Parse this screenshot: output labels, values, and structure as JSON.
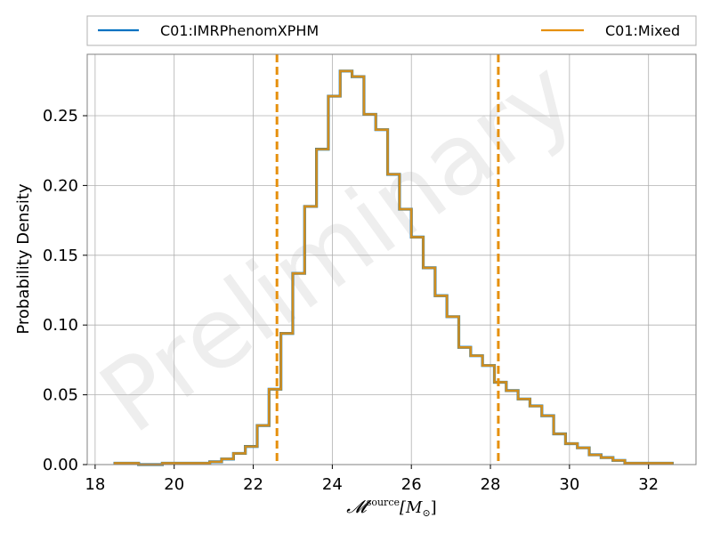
{
  "chart_data": {
    "type": "histogram",
    "ylabel": "Probability Density",
    "xlabel": {
      "main": "𝓜",
      "superscript": "source",
      "unit": "[M",
      "unit_sub": "⊙",
      "unit_close": "]"
    },
    "xlim": [
      17.8,
      33.2
    ],
    "ylim": [
      0,
      0.294
    ],
    "xticks": [
      18,
      20,
      22,
      24,
      26,
      28,
      30,
      32
    ],
    "yticks": [
      0.0,
      0.05,
      0.1,
      0.15,
      0.2,
      0.25
    ],
    "ytick_labels": [
      "0.00",
      "0.05",
      "0.10",
      "0.15",
      "0.20",
      "0.25"
    ],
    "grid": true,
    "legend_placement": "top (above plot)",
    "watermark": "Preliminary",
    "bins": [
      18.5,
      18.8,
      19.1,
      19.4,
      19.7,
      20.0,
      20.3,
      20.6,
      20.9,
      21.2,
      21.5,
      21.8,
      22.1,
      22.4,
      22.7,
      23.0,
      23.3,
      23.6,
      23.9,
      24.2,
      24.5,
      24.8,
      25.1,
      25.4,
      25.7,
      26.0,
      26.3,
      26.6,
      26.9,
      27.2,
      27.5,
      27.8,
      28.1,
      28.4,
      28.7,
      29.0,
      29.3,
      29.6,
      29.9,
      30.2,
      30.5,
      30.8,
      31.1,
      31.4,
      31.7,
      32.0,
      32.3,
      32.6
    ],
    "series": [
      {
        "name": "C01:IMRPhenomXPHM",
        "color": "#0072c1",
        "values": [
          0.001,
          0.001,
          0.0,
          0.0,
          0.001,
          0.001,
          0.001,
          0.001,
          0.002,
          0.004,
          0.008,
          0.013,
          0.028,
          0.054,
          0.094,
          0.137,
          0.185,
          0.226,
          0.264,
          0.282,
          0.278,
          0.251,
          0.24,
          0.208,
          0.183,
          0.163,
          0.141,
          0.121,
          0.106,
          0.084,
          0.078,
          0.071,
          0.059,
          0.053,
          0.047,
          0.042,
          0.035,
          0.022,
          0.015,
          0.012,
          0.007,
          0.005,
          0.003,
          0.001,
          0.001,
          0.001,
          0.001
        ]
      },
      {
        "name": "C01:Mixed",
        "color": "#e6900c",
        "values": [
          0.001,
          0.001,
          0.0,
          0.0,
          0.001,
          0.001,
          0.001,
          0.001,
          0.002,
          0.004,
          0.008,
          0.013,
          0.028,
          0.054,
          0.094,
          0.137,
          0.185,
          0.226,
          0.264,
          0.282,
          0.278,
          0.251,
          0.24,
          0.208,
          0.183,
          0.163,
          0.141,
          0.121,
          0.106,
          0.084,
          0.078,
          0.071,
          0.059,
          0.053,
          0.047,
          0.042,
          0.035,
          0.022,
          0.015,
          0.012,
          0.007,
          0.005,
          0.003,
          0.001,
          0.001,
          0.001,
          0.001
        ]
      }
    ],
    "vlines": [
      {
        "x": 22.6,
        "color": "#e6900c",
        "style": "dashed"
      },
      {
        "x": 28.2,
        "color": "#e6900c",
        "style": "dashed"
      }
    ]
  }
}
